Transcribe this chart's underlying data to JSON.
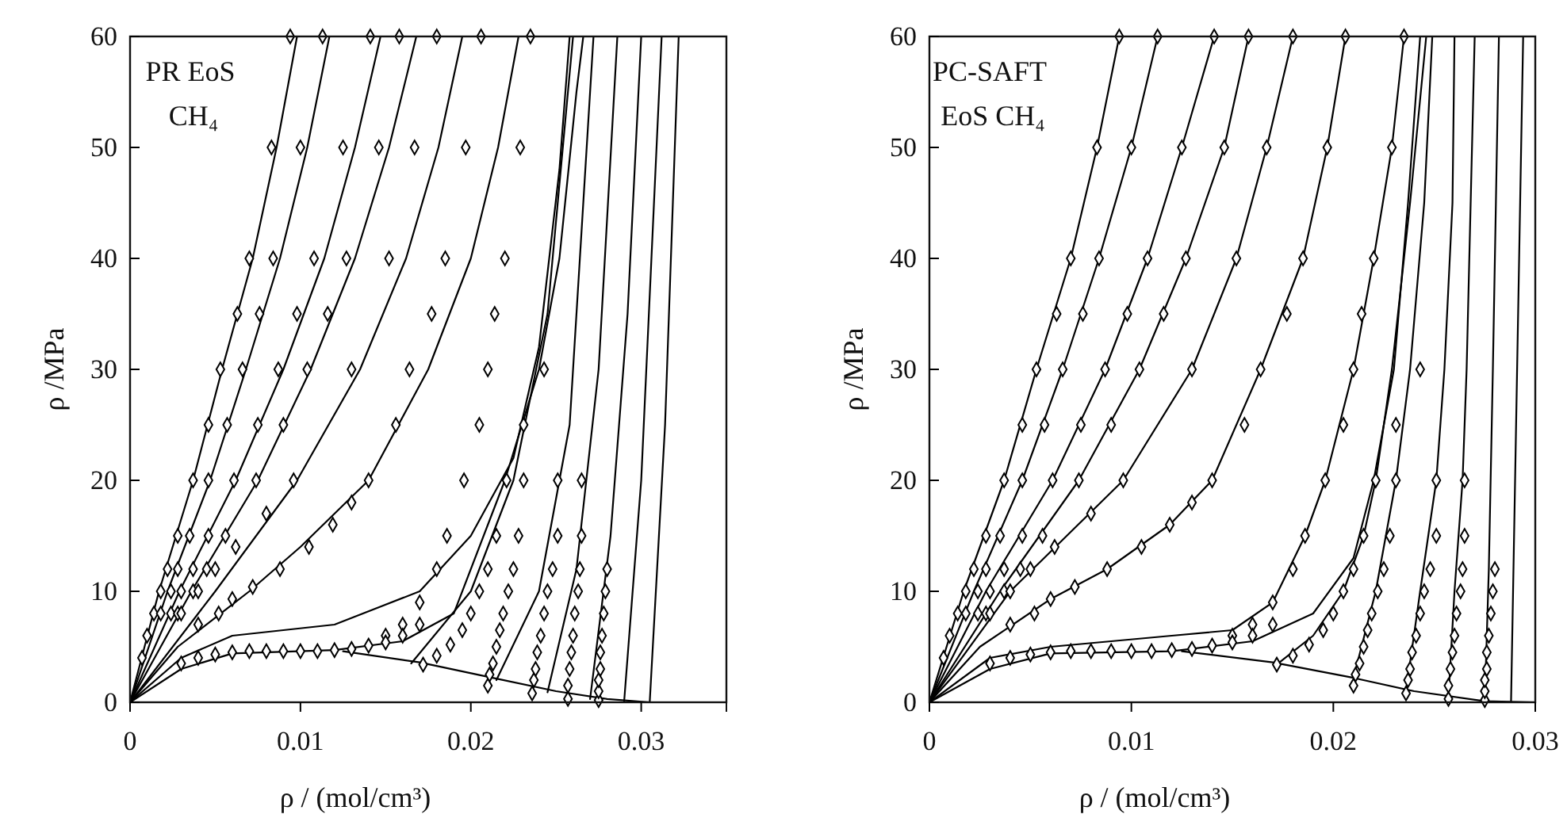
{
  "chart_data": [
    {
      "type": "line",
      "xlabel": "ρ  / (mol/cm³)",
      "ylabel": "ρ /MPa",
      "annotations": [
        "PR EoS",
        "CH₄"
      ],
      "xlim": [
        0,
        0.035
      ],
      "xticks": [
        0,
        0.01,
        0.02,
        0.03
      ],
      "ylim": [
        0,
        60
      ],
      "yticks": [
        0,
        10,
        20,
        30,
        40,
        50,
        60
      ],
      "series": [
        {
          "color": "#000000",
          "x": [
            0,
            0.0017,
            0.0037,
            0.0054,
            0.0072,
            0.0086,
            0.0098
          ],
          "values": [
            0,
            10,
            20,
            30,
            40,
            50,
            60
          ]
        },
        {
          "color": "#000000",
          "x": [
            0,
            0.0022,
            0.0047,
            0.0068,
            0.0088,
            0.0104,
            0.0117
          ],
          "values": [
            0,
            10,
            20,
            30,
            40,
            50,
            60
          ]
        },
        {
          "color": "#000000",
          "x": [
            0,
            0.0029,
            0.0062,
            0.009,
            0.0114,
            0.0132,
            0.0147
          ],
          "values": [
            0,
            10,
            20,
            30,
            40,
            50,
            60
          ]
        },
        {
          "color": "#000000",
          "x": [
            0,
            0.0036,
            0.0075,
            0.0106,
            0.0132,
            0.0152,
            0.0168
          ],
          "values": [
            0,
            10,
            20,
            30,
            40,
            50,
            60
          ]
        },
        {
          "color": "#000000",
          "x": [
            0,
            0.005,
            0.0098,
            0.0135,
            0.0162,
            0.0181,
            0.0195
          ],
          "values": [
            0,
            10,
            20,
            30,
            40,
            50,
            60
          ]
        },
        {
          "color": "#000000",
          "x": [
            0,
            0.0028,
            0.007,
            0.01,
            0.014,
            0.0175,
            0.02,
            0.0216,
            0.0228
          ],
          "values": [
            0,
            5,
            10,
            14,
            20,
            30,
            40,
            50,
            60
          ]
        },
        {
          "color": "#000000",
          "x": [
            0,
            0.003,
            0.006,
            0.012,
            0.017,
            0.02,
            0.0225,
            0.024,
            0.0252,
            0.0258
          ],
          "values": [
            0,
            4,
            6,
            7,
            10,
            15,
            22,
            32,
            48,
            60
          ]
        },
        {
          "color": "#000000",
          "x": [
            0,
            0.003,
            0.006,
            0.012,
            0.016,
            0.019,
            0.022,
            0.024,
            0.0252,
            0.0262,
            0.0266
          ],
          "values": [
            0,
            3,
            4.4,
            4.7,
            5.5,
            8,
            20,
            30,
            40,
            55,
            60
          ]
        },
        {
          "color": "#000000",
          "x": [
            0.0125,
            0.017,
            0.021,
            0.025,
            0.028,
            0.0305
          ],
          "values": [
            4.6,
            3.6,
            2.3,
            1,
            0.3,
            0
          ]
        },
        {
          "color": "#000000",
          "x": [
            0.0165,
            0.02,
            0.0225,
            0.0245,
            0.026
          ],
          "values": [
            3.5,
            10,
            20,
            35,
            60
          ]
        },
        {
          "color": "#000000",
          "x": [
            0.0215,
            0.024,
            0.0258,
            0.0272
          ],
          "values": [
            2,
            10,
            25,
            60
          ]
        },
        {
          "color": "#000000",
          "x": [
            0.0245,
            0.0262,
            0.0275,
            0.0286
          ],
          "values": [
            0.9,
            12,
            30,
            60
          ]
        },
        {
          "color": "#000000",
          "x": [
            0.027,
            0.0282,
            0.0292,
            0.03
          ],
          "values": [
            0.3,
            15,
            35,
            60
          ]
        },
        {
          "color": "#000000",
          "x": [
            0.029,
            0.03,
            0.0312
          ],
          "values": [
            0.1,
            20,
            60
          ]
        },
        {
          "color": "#000000",
          "x": [
            0.0305,
            0.0314,
            0.0322
          ],
          "values": [
            0,
            25,
            60
          ]
        },
        {
          "type": "scatter",
          "marker": "diamond",
          "color": "#000000",
          "x": [
            0.0094,
            0.0083,
            0.007,
            0.0063,
            0.0053,
            0.0046,
            0.0037,
            0.0028,
            0.0022,
            0.0018,
            0.0014,
            0.001,
            0.0007,
            0.0113,
            0.01,
            0.0084,
            0.0076,
            0.0066,
            0.0057,
            0.0046,
            0.0035,
            0.0028,
            0.0024,
            0.0018,
            0.0141,
            0.0125,
            0.0108,
            0.0098,
            0.0087,
            0.0075,
            0.0061,
            0.0046,
            0.0037,
            0.003,
            0.0024,
            0.0158,
            0.0146,
            0.0127,
            0.0116,
            0.0104,
            0.009,
            0.0074,
            0.0056,
            0.0045,
            0.0037,
            0.0028,
            0.018,
            0.0167,
            0.0152,
            0.013,
            0.0096,
            0.008,
            0.0062,
            0.005,
            0.004,
            0.003,
            0.0206,
            0.0197,
            0.0185,
            0.0177,
            0.0164,
            0.0156,
            0.014,
            0.013,
            0.0119,
            0.0105,
            0.0088,
            0.0072,
            0.006,
            0.0052,
            0.004,
            0.0235,
            0.0229,
            0.022,
            0.0214,
            0.021,
            0.0205,
            0.0196,
            0.0186,
            0.018,
            0.017,
            0.016,
            0.015,
            0.003,
            0.004,
            0.005,
            0.006,
            0.007,
            0.008,
            0.009,
            0.01,
            0.011,
            0.012,
            0.013,
            0.014,
            0.015,
            0.016,
            0.017,
            0.0172,
            0.018,
            0.0188,
            0.0195,
            0.02,
            0.0205,
            0.021,
            0.0215,
            0.0221,
            0.0231,
            0.0243,
            0.021,
            0.0211,
            0.0213,
            0.0215,
            0.0217,
            0.0219,
            0.0222,
            0.0225,
            0.0228,
            0.0231,
            0.0236,
            0.0237,
            0.0238,
            0.0239,
            0.0241,
            0.0243,
            0.0245,
            0.0248,
            0.0251,
            0.0251,
            0.0257,
            0.0257,
            0.0258,
            0.0259,
            0.026,
            0.0261,
            0.0263,
            0.0264,
            0.0265,
            0.0265,
            0.0275,
            0.0275,
            0.0275,
            0.0276,
            0.0276,
            0.0277,
            0.0278,
            0.0279,
            0.028
          ],
          "values": [
            60,
            50,
            40,
            35,
            30,
            25,
            20,
            15,
            12,
            10,
            8,
            6,
            4,
            60,
            50,
            40,
            35,
            30,
            25,
            20,
            15,
            12,
            10,
            8,
            60,
            50,
            40,
            35,
            30,
            25,
            20,
            15,
            12,
            10,
            8,
            60,
            50,
            40,
            35,
            30,
            25,
            20,
            15,
            12,
            10,
            8,
            60,
            50,
            40,
            30,
            20,
            17,
            14,
            12,
            10,
            8,
            60,
            50,
            40,
            35,
            30,
            25,
            20,
            18,
            16,
            14,
            12,
            10.4,
            9.3,
            8,
            7,
            60,
            50,
            40,
            35,
            30,
            25,
            20,
            15,
            12,
            9,
            7,
            6,
            3.5,
            4,
            4.3,
            4.5,
            4.6,
            4.6,
            4.6,
            4.6,
            4.6,
            4.7,
            4.8,
            5.1,
            5.4,
            6,
            7,
            3.4,
            4.2,
            5.2,
            6.5,
            8,
            10,
            12,
            15,
            20,
            25,
            30,
            1.5,
            2.5,
            3.5,
            5,
            6.5,
            8,
            10,
            12,
            15,
            20,
            0.8,
            2,
            3,
            4.5,
            6,
            8,
            10,
            12,
            15,
            20,
            0.3,
            1.5,
            3,
            4.5,
            6,
            8,
            10,
            12,
            15,
            20,
            0.2,
            1,
            2,
            3,
            4.5,
            6,
            8,
            10,
            12
          ]
        }
      ]
    },
    {
      "type": "line",
      "xlabel": "ρ  / (mol/cm³)",
      "ylabel": "ρ /MPa",
      "annotations": [
        "PC-SAFT",
        "EoS CH₄"
      ],
      "xlim": [
        0,
        0.03
      ],
      "xticks": [
        0,
        0.01,
        0.02,
        0.03
      ],
      "ylim": [
        0,
        60
      ],
      "yticks": [
        0,
        10,
        20,
        30,
        40,
        50,
        60
      ],
      "series": [
        {
          "color": "#000000",
          "x": [
            0,
            0.0017,
            0.0037,
            0.0053,
            0.007,
            0.0083,
            0.0094
          ],
          "values": [
            0,
            10,
            20,
            30,
            40,
            50,
            60
          ]
        },
        {
          "color": "#000000",
          "x": [
            0,
            0.0022,
            0.0046,
            0.0066,
            0.0084,
            0.01,
            0.0113
          ],
          "values": [
            0,
            10,
            20,
            30,
            40,
            50,
            60
          ]
        },
        {
          "color": "#000000",
          "x": [
            0,
            0.0028,
            0.0061,
            0.0087,
            0.0108,
            0.0125,
            0.0141
          ],
          "values": [
            0,
            10,
            20,
            30,
            40,
            50,
            60
          ]
        },
        {
          "color": "#000000",
          "x": [
            0,
            0.0035,
            0.0074,
            0.0104,
            0.0127,
            0.0146,
            0.0158
          ],
          "values": [
            0,
            10,
            20,
            30,
            40,
            50,
            60
          ]
        },
        {
          "color": "#000000",
          "x": [
            0,
            0.004,
            0.0096,
            0.013,
            0.0152,
            0.0167,
            0.018
          ],
          "values": [
            0,
            10,
            20,
            30,
            40,
            50,
            60
          ]
        },
        {
          "color": "#000000",
          "x": [
            0,
            0.0025,
            0.006,
            0.0088,
            0.0119,
            0.014,
            0.0164,
            0.0185,
            0.0197,
            0.0206
          ],
          "values": [
            0,
            5,
            9.3,
            12,
            16,
            20,
            30,
            40,
            50,
            60
          ]
        },
        {
          "color": "#000000",
          "x": [
            0,
            0.003,
            0.006,
            0.012,
            0.015,
            0.017,
            0.0186,
            0.0196,
            0.021,
            0.022,
            0.0229,
            0.0235
          ],
          "values": [
            0,
            4,
            5,
            6,
            6.5,
            9,
            15,
            20,
            30,
            40,
            50,
            60
          ]
        },
        {
          "color": "#000000",
          "x": [
            0,
            0.003,
            0.006,
            0.012,
            0.016,
            0.019,
            0.021,
            0.022,
            0.023,
            0.0237,
            0.0243
          ],
          "values": [
            0,
            3,
            4.4,
            4.6,
            5.5,
            8,
            13,
            20,
            30,
            45,
            60
          ]
        },
        {
          "color": "#000000",
          "x": [
            0.0125,
            0.017,
            0.021,
            0.024,
            0.0275,
            0.03
          ],
          "values": [
            4.6,
            3.6,
            2.2,
            1,
            0.1,
            0
          ]
        },
        {
          "color": "#000000",
          "x": [
            0.0172,
            0.019,
            0.0205,
            0.0215,
            0.0221,
            0.0229,
            0.0238,
            0.0246
          ],
          "values": [
            3.4,
            6,
            10,
            15,
            20,
            30,
            45,
            60
          ]
        },
        {
          "color": "#000000",
          "x": [
            0.021,
            0.0221,
            0.0231,
            0.0238,
            0.0245,
            0.0249
          ],
          "values": [
            2.2,
            10,
            20,
            30,
            45,
            60
          ]
        },
        {
          "color": "#000000",
          "x": [
            0.0236,
            0.0243,
            0.0251,
            0.0255,
            0.0259,
            0.026
          ],
          "values": [
            1,
            10,
            20,
            30,
            45,
            60
          ]
        },
        {
          "color": "#000000",
          "x": [
            0.0257,
            0.026,
            0.0264,
            0.0266,
            0.0268,
            0.027
          ],
          "values": [
            0.4,
            10,
            20,
            30,
            45,
            60
          ]
        },
        {
          "color": "#000000",
          "x": [
            0.0275,
            0.0277,
            0.0279,
            0.0282
          ],
          "values": [
            0.1,
            12,
            30,
            60
          ]
        },
        {
          "color": "#000000",
          "x": [
            0.0288,
            0.029,
            0.0294
          ],
          "values": [
            0,
            20,
            60
          ]
        },
        {
          "type": "scatter",
          "marker": "diamond",
          "color": "#000000",
          "x": [
            0.0094,
            0.0083,
            0.007,
            0.0063,
            0.0053,
            0.0046,
            0.0037,
            0.0028,
            0.0022,
            0.0018,
            0.0014,
            0.001,
            0.0007,
            0.0113,
            0.01,
            0.0084,
            0.0076,
            0.0066,
            0.0057,
            0.0046,
            0.0035,
            0.0028,
            0.0024,
            0.0018,
            0.0141,
            0.0125,
            0.0108,
            0.0098,
            0.0087,
            0.0075,
            0.0061,
            0.0046,
            0.0037,
            0.003,
            0.0024,
            0.0158,
            0.0146,
            0.0127,
            0.0116,
            0.0104,
            0.009,
            0.0074,
            0.0056,
            0.0045,
            0.0037,
            0.0028,
            0.018,
            0.0167,
            0.0152,
            0.013,
            0.0096,
            0.008,
            0.0062,
            0.005,
            0.004,
            0.003,
            0.0206,
            0.0197,
            0.0185,
            0.0177,
            0.0164,
            0.0156,
            0.014,
            0.013,
            0.0119,
            0.0105,
            0.0088,
            0.0072,
            0.006,
            0.0052,
            0.004,
            0.0235,
            0.0229,
            0.022,
            0.0214,
            0.021,
            0.0205,
            0.0196,
            0.0186,
            0.018,
            0.017,
            0.016,
            0.015,
            0.003,
            0.004,
            0.005,
            0.006,
            0.007,
            0.008,
            0.009,
            0.01,
            0.011,
            0.012,
            0.013,
            0.014,
            0.015,
            0.016,
            0.017,
            0.0172,
            0.018,
            0.0188,
            0.0195,
            0.02,
            0.0205,
            0.021,
            0.0215,
            0.0221,
            0.0231,
            0.0243,
            0.021,
            0.0211,
            0.0213,
            0.0215,
            0.0217,
            0.0219,
            0.0222,
            0.0225,
            0.0228,
            0.0231,
            0.0236,
            0.0237,
            0.0238,
            0.0239,
            0.0241,
            0.0243,
            0.0245,
            0.0248,
            0.0251,
            0.0251,
            0.0257,
            0.0257,
            0.0258,
            0.0259,
            0.026,
            0.0261,
            0.0263,
            0.0264,
            0.0265,
            0.0265,
            0.0275,
            0.0275,
            0.0275,
            0.0276,
            0.0276,
            0.0277,
            0.0278,
            0.0279,
            0.028
          ],
          "values": [
            60,
            50,
            40,
            35,
            30,
            25,
            20,
            15,
            12,
            10,
            8,
            6,
            4,
            60,
            50,
            40,
            35,
            30,
            25,
            20,
            15,
            12,
            10,
            8,
            60,
            50,
            40,
            35,
            30,
            25,
            20,
            15,
            12,
            10,
            8,
            60,
            50,
            40,
            35,
            30,
            25,
            20,
            15,
            12,
            10,
            8,
            60,
            50,
            40,
            30,
            20,
            17,
            14,
            12,
            10,
            8,
            60,
            50,
            40,
            35,
            30,
            25,
            20,
            18,
            16,
            14,
            12,
            10.4,
            9.3,
            8,
            7,
            60,
            50,
            40,
            35,
            30,
            25,
            20,
            15,
            12,
            9,
            7,
            6,
            3.5,
            4,
            4.3,
            4.5,
            4.6,
            4.6,
            4.6,
            4.6,
            4.6,
            4.7,
            4.8,
            5.1,
            5.4,
            6,
            7,
            3.4,
            4.2,
            5.2,
            6.5,
            8,
            10,
            12,
            15,
            20,
            25,
            30,
            1.5,
            2.5,
            3.5,
            5,
            6.5,
            8,
            10,
            12,
            15,
            20,
            0.8,
            2,
            3,
            4.5,
            6,
            8,
            10,
            12,
            15,
            20,
            0.3,
            1.5,
            3,
            4.5,
            6,
            8,
            10,
            12,
            15,
            20,
            0.2,
            1,
            2,
            3,
            4.5,
            6,
            8,
            10,
            12
          ]
        }
      ]
    }
  ]
}
